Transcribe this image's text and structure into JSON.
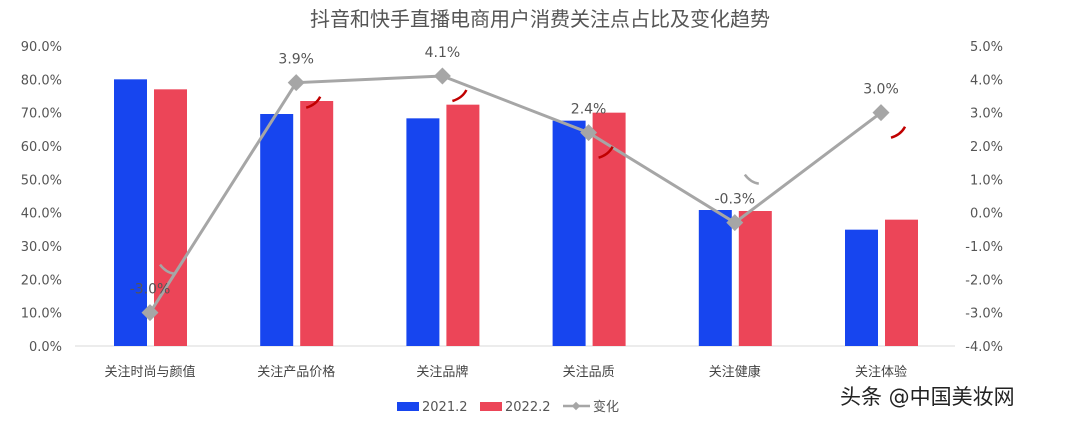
{
  "chart_data": {
    "type": "bar",
    "title": "抖音和快手直播电商用户消费关注点占比及变化趋势",
    "categories": [
      "关注时尚与颜值",
      "关注产品价格",
      "关注品牌",
      "关注品质",
      "关注健康",
      "关注体验"
    ],
    "series": [
      {
        "name": "2021.2",
        "type": "bar",
        "axis": "left",
        "color": "#1745ef",
        "values": [
          80.0,
          69.6,
          68.3,
          67.6,
          40.8,
          34.9
        ]
      },
      {
        "name": "2022.2",
        "type": "bar",
        "axis": "left",
        "color": "#ec4558",
        "values": [
          77.0,
          73.5,
          72.4,
          70.0,
          40.5,
          37.9
        ]
      },
      {
        "name": "变化",
        "type": "line",
        "axis": "right",
        "color": "#a6a6a6",
        "values": [
          -3.0,
          3.9,
          4.1,
          2.4,
          -0.3,
          3.0
        ],
        "labels": [
          "-3.0%",
          "3.9%",
          "4.1%",
          "2.4%",
          "-0.3%",
          "3.0%"
        ]
      }
    ],
    "left_axis": {
      "ylim": [
        0,
        90
      ],
      "ticks": [
        "0.0%",
        "10.0%",
        "20.0%",
        "30.0%",
        "40.0%",
        "50.0%",
        "60.0%",
        "70.0%",
        "80.0%",
        "90.0%"
      ]
    },
    "right_axis": {
      "ylim": [
        -4,
        5
      ],
      "ticks": [
        "-4.0%",
        "-3.0%",
        "-2.0%",
        "-1.0%",
        "0.0%",
        "1.0%",
        "2.0%",
        "3.0%",
        "4.0%",
        "5.0%"
      ]
    },
    "grid": false,
    "legend": "bottom"
  },
  "watermark": "头条 @中国美妆网"
}
